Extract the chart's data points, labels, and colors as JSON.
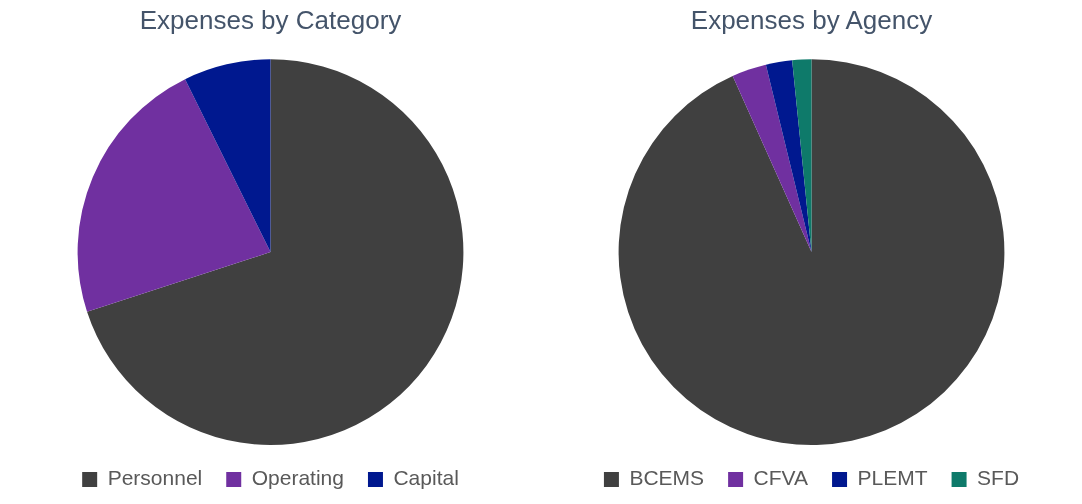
{
  "chart_data": [
    {
      "type": "pie",
      "title": "Expenses by Category",
      "categories": [
        "Personnel",
        "Operating",
        "Capital"
      ],
      "values": [
        70,
        22.7,
        7.3
      ],
      "colors": [
        "#404040",
        "#7030a0",
        "#00188f"
      ],
      "legend": "bottom"
    },
    {
      "type": "pie",
      "title": "Expenses by Agency",
      "categories": [
        "BCEMS",
        "CFVA",
        "PLEMT",
        "SFD"
      ],
      "values": [
        93.3,
        2.9,
        2.2,
        1.6
      ],
      "colors": [
        "#404040",
        "#7030a0",
        "#00188f",
        "#0e7a6a"
      ],
      "legend": "bottom"
    }
  ]
}
